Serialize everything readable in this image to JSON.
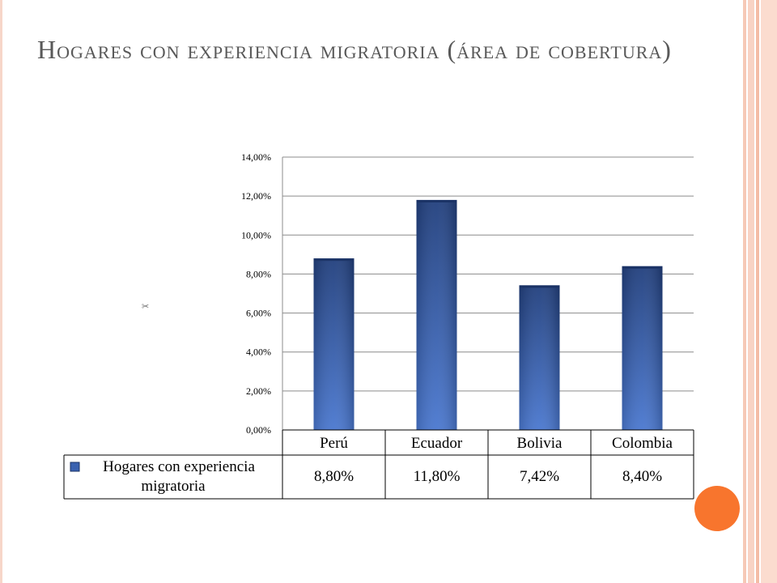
{
  "slide": {
    "title": "Hogares con experiencia migratoria (área de cobertura)",
    "accent_color": "#f8752d",
    "stripe_color": "#f8d3c4"
  },
  "chart_data": {
    "type": "bar",
    "categories": [
      "Perú",
      "Ecuador",
      "Bolivia",
      "Colombia"
    ],
    "series": [
      {
        "name": "Hogares con experiencia migratoria",
        "values": [
          8.8,
          11.8,
          7.42,
          8.4
        ],
        "color": "#3a62b0"
      }
    ],
    "y_ticks": [
      "0,00%",
      "2,00%",
      "4,00%",
      "6,00%",
      "8,00%",
      "10,00%",
      "12,00%",
      "14,00%"
    ],
    "ylim": [
      0,
      14
    ],
    "grid": true,
    "legend": "data-table-below",
    "table_values": [
      "8,80%",
      "11,80%",
      "7,42%",
      "8,40%"
    ],
    "table_series_label_line1": "Hogares con experiencia",
    "table_series_label_line2": "migratoria"
  }
}
